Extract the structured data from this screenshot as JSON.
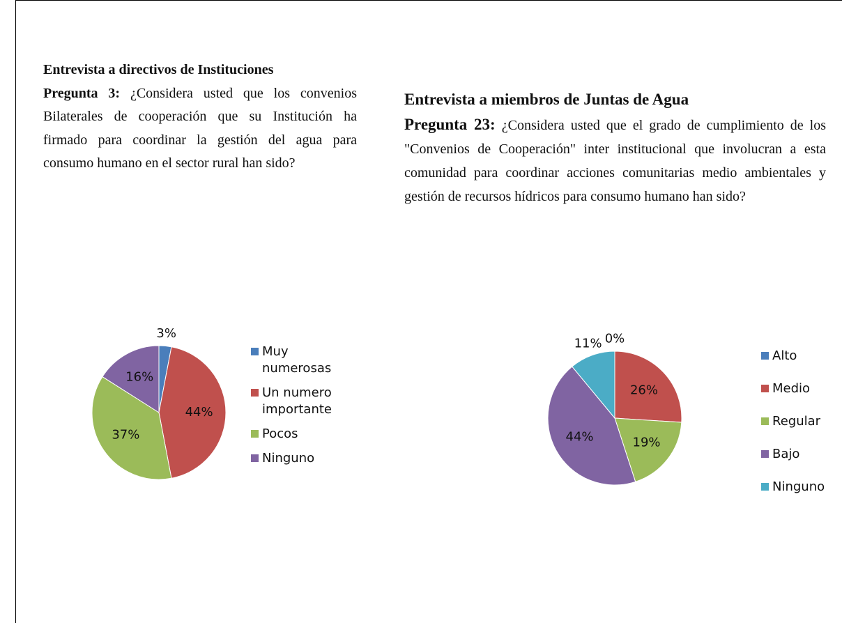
{
  "sections": [
    {
      "heading": "Entrevista a directivos de Instituciones",
      "label": "Pregunta 3:",
      "question": "¿Considera usted que los convenios Bilaterales de cooperación que su Institución ha firmado para coordinar la gestión del agua para consumo humano en el sector rural han sido?"
    },
    {
      "heading": "Entrevista a miembros de Juntas de Agua",
      "label": "Pregunta 23:",
      "question": "¿Considera usted que el grado de cumplimiento de los \"Convenios de Cooperación\" inter institucional que involucran a esta comunidad para coordinar acciones comunitarias medio ambientales y gestión de recursos hídricos para consumo humano han sido?"
    }
  ],
  "chart_data": [
    {
      "type": "pie",
      "categories": [
        "Muy numerosas",
        "Un numero importante",
        "Pocos",
        "Ninguno"
      ],
      "values": [
        3,
        44,
        37,
        16
      ],
      "value_labels": [
        "3%",
        "44%",
        "37%",
        "16%"
      ],
      "colors": [
        "#4a7ebb",
        "#c0504d",
        "#9bbb59",
        "#8064a2"
      ]
    },
    {
      "type": "pie",
      "categories": [
        "Alto",
        "Medio",
        "Regular",
        "Bajo",
        "Ninguno"
      ],
      "values": [
        0,
        26,
        19,
        44,
        11
      ],
      "value_labels": [
        "0%",
        "26%",
        "19%",
        "44%",
        "11%"
      ],
      "colors": [
        "#4a7ebb",
        "#c0504d",
        "#9bbb59",
        "#8064a2",
        "#4bacc6"
      ]
    }
  ]
}
